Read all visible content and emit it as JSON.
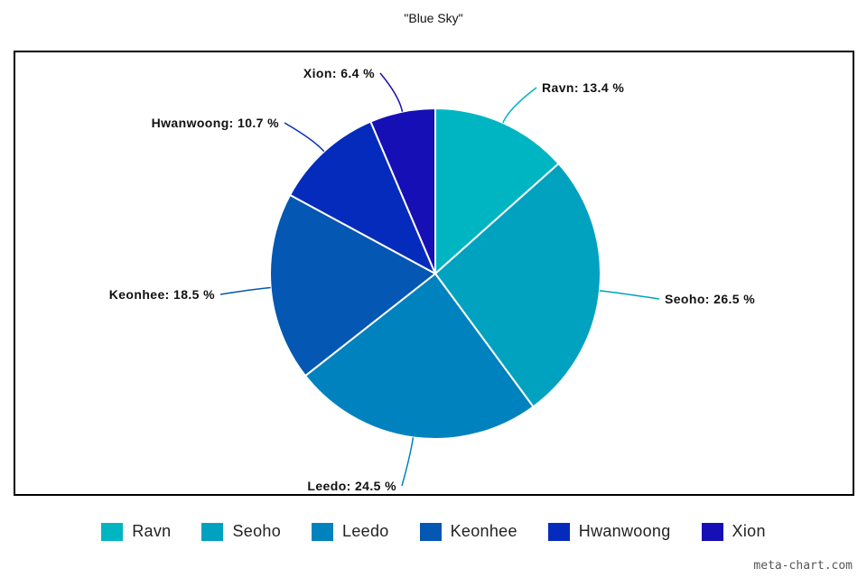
{
  "chart_data": {
    "type": "pie",
    "title": "\"Blue Sky\"",
    "categories": [
      "Ravn",
      "Seoho",
      "Leedo",
      "Keonhee",
      "Hwanwoong",
      "Xion"
    ],
    "values": [
      13.4,
      26.5,
      24.5,
      18.5,
      10.7,
      6.4
    ],
    "unit": "%",
    "labels": [
      "Ravn: 13.4 %",
      "Seoho: 26.5 %",
      "Leedo: 24.5 %",
      "Keonhee: 18.5 %",
      "Hwanwoong: 10.7 %",
      "Xion: 6.4 %"
    ],
    "colors": [
      "#00b5c2",
      "#00a2c0",
      "#0082bf",
      "#0457b2",
      "#052bbd",
      "#160fb5"
    ],
    "legend_position": "bottom"
  },
  "watermark": "meta-chart.com"
}
